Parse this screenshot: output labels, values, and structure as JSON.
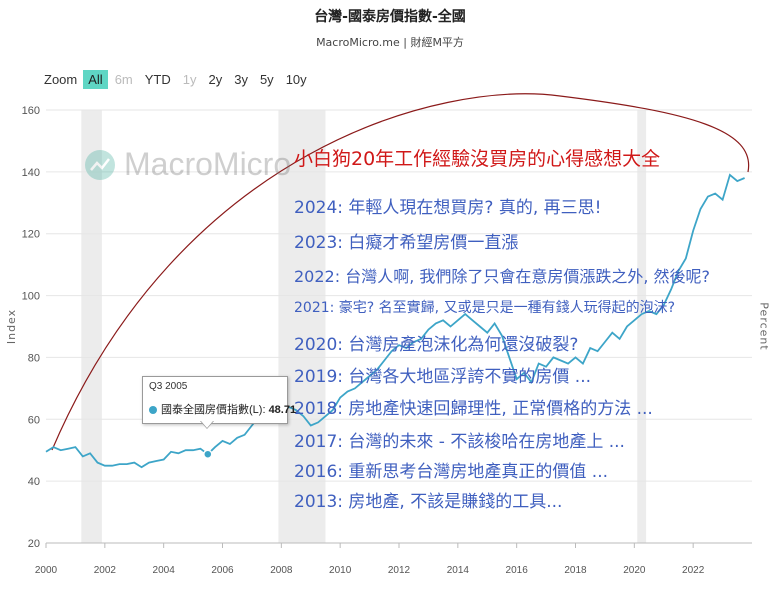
{
  "title": "台灣-國泰房價指數-全國",
  "subtitle": "MacroMicro.me | 財經M平方",
  "zoom": {
    "label": "Zoom",
    "buttons": [
      {
        "label": "All",
        "state": "active"
      },
      {
        "label": "6m",
        "state": "disabled"
      },
      {
        "label": "YTD",
        "state": "normal"
      },
      {
        "label": "1y",
        "state": "disabled"
      },
      {
        "label": "2y",
        "state": "normal"
      },
      {
        "label": "3y",
        "state": "normal"
      },
      {
        "label": "5y",
        "state": "normal"
      },
      {
        "label": "10y",
        "state": "normal"
      }
    ]
  },
  "watermark": {
    "text": "MacroMicro"
  },
  "tooltip": {
    "period": "Q3 2005",
    "series_label": "國泰全國房價指數(L): ",
    "value": "48.71"
  },
  "overlay": {
    "title": "小白狗20年工作經驗沒買房的心得感想大全",
    "title_color": "#d01818",
    "text_color": "#3f5fbf",
    "lines": [
      "2024:  年輕人現在想買房? 真的, 再三思!",
      "2023:  白癡才希望房價一直漲",
      "2022:  台灣人啊, 我們除了只會在意房價漲跌之外, 然後呢?",
      "2021: 豪宅? 名至實歸, 又或是只是一種有錢人玩得起的泡沫?",
      "2020: 台灣房產泡沫化為何還沒破裂?",
      "2019: 台灣各大地區浮誇不實的房價 ...",
      "2018: 房地產快速回歸理性, 正常價格的方法 ...",
      "2017: 台灣的未來 - 不該梭哈在房地產上 ...",
      "2016: 重新思考台灣房地產真正的價值 ...",
      "2013: 房地產, 不該是賺錢的工具..."
    ]
  },
  "chart_data": {
    "type": "line",
    "ylabel": "Index",
    "y2label": "Percent",
    "ylim": [
      20,
      160
    ],
    "xlim": [
      2000,
      2024
    ],
    "yticks": [
      20,
      40,
      60,
      80,
      100,
      120,
      140,
      160
    ],
    "xticks": [
      2000,
      2002,
      2004,
      2006,
      2008,
      2010,
      2012,
      2014,
      2016,
      2018,
      2020,
      2022
    ],
    "grid": true,
    "line_color": "#3da5c8",
    "recession_bands": [
      [
        2001.2,
        2001.9
      ],
      [
        2007.9,
        2009.5
      ],
      [
        2020.1,
        2020.4
      ]
    ],
    "series": [
      {
        "name": "國泰全國房價指數(L)",
        "x": [
          2000.0,
          2000.25,
          2000.5,
          2000.75,
          2001.0,
          2001.25,
          2001.5,
          2001.75,
          2002.0,
          2002.25,
          2002.5,
          2002.75,
          2003.0,
          2003.25,
          2003.5,
          2003.75,
          2004.0,
          2004.25,
          2004.5,
          2004.75,
          2005.0,
          2005.25,
          2005.5,
          2005.75,
          2006.0,
          2006.25,
          2006.5,
          2006.75,
          2007.0,
          2007.25,
          2007.5,
          2007.75,
          2008.0,
          2008.25,
          2008.5,
          2008.75,
          2009.0,
          2009.25,
          2009.5,
          2009.75,
          2010.0,
          2010.25,
          2010.5,
          2010.75,
          2011.0,
          2011.25,
          2011.5,
          2011.75,
          2012.0,
          2012.25,
          2012.5,
          2012.75,
          2013.0,
          2013.25,
          2013.5,
          2013.75,
          2014.0,
          2014.25,
          2014.5,
          2014.75,
          2015.0,
          2015.25,
          2015.5,
          2015.75,
          2016.0,
          2016.25,
          2016.5,
          2016.75,
          2017.0,
          2017.25,
          2017.5,
          2017.75,
          2018.0,
          2018.25,
          2018.5,
          2018.75,
          2019.0,
          2019.25,
          2019.5,
          2019.75,
          2020.0,
          2020.25,
          2020.5,
          2020.75,
          2021.0,
          2021.25,
          2021.5,
          2021.75,
          2022.0,
          2022.25,
          2022.5,
          2022.75,
          2023.0,
          2023.25,
          2023.5,
          2023.75
        ],
        "values": [
          49.5,
          51,
          50,
          50.5,
          51,
          48,
          49,
          46,
          45,
          45,
          45.5,
          45.5,
          46,
          44.5,
          46,
          46.5,
          47,
          49.5,
          49,
          50,
          50,
          50.5,
          48.7,
          51,
          53,
          52,
          54,
          55,
          58,
          61,
          60,
          63,
          62,
          64,
          63,
          61,
          58,
          59,
          61,
          63,
          67,
          69,
          70,
          72,
          74,
          76,
          79,
          82,
          84,
          83,
          85,
          86,
          89,
          91,
          92,
          90,
          92,
          94,
          92,
          90,
          88,
          91,
          87,
          80,
          73,
          75,
          72,
          78,
          77,
          80,
          79,
          78,
          80,
          78,
          83,
          82,
          85,
          88,
          86,
          90,
          92,
          94,
          95,
          94,
          97,
          102,
          108,
          112,
          121,
          128,
          132,
          133,
          131,
          139,
          137,
          138
        ]
      }
    ]
  }
}
